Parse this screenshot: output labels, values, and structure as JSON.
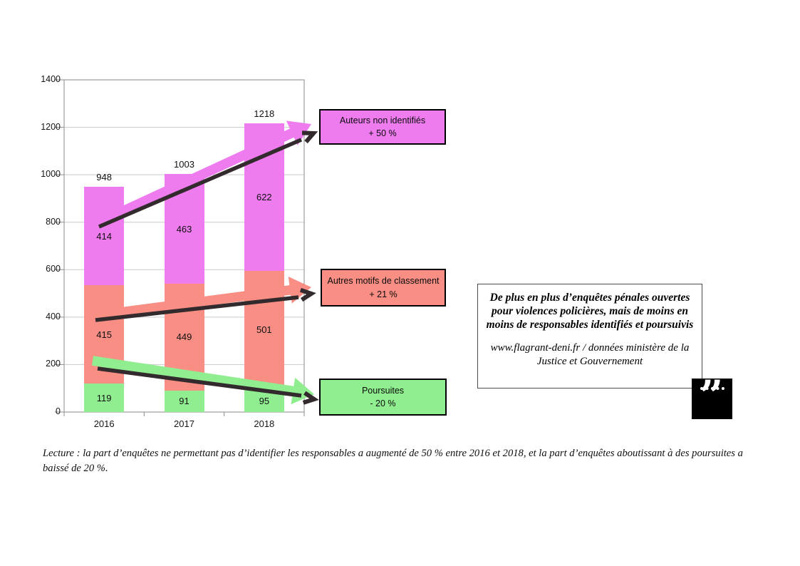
{
  "chart_data": {
    "type": "bar",
    "stacked": true,
    "title": "",
    "xlabel": "",
    "ylabel": "",
    "categories": [
      "2016",
      "2017",
      "2018"
    ],
    "series": [
      {
        "name": "Poursuites",
        "color": "#90ee90",
        "values": [
          119,
          91,
          95
        ]
      },
      {
        "name": "Autres motifs de classement",
        "color": "#f98e85",
        "values": [
          415,
          449,
          501
        ]
      },
      {
        "name": "Auteurs non identifiés",
        "color": "#ee7cee",
        "values": [
          414,
          463,
          622
        ]
      }
    ],
    "totals": [
      948,
      1003,
      1218
    ],
    "ylim": [
      0,
      1400
    ],
    "yticks": [
      0,
      200,
      400,
      600,
      800,
      1000,
      1200,
      1400
    ],
    "grid": true,
    "legend_position": "none",
    "annotations": [
      {
        "label": "Auteurs non identifiés",
        "delta": "+ 50 %",
        "color": "#ee7cee"
      },
      {
        "label": "Autres motifs de classement",
        "delta": "+ 21 %",
        "color": "#f98e85"
      },
      {
        "label": "Poursuites",
        "delta": "- 20 %",
        "color": "#90ee90"
      }
    ],
    "arrow_color": "#322a2c"
  },
  "info_box": {
    "headline": "De plus en plus d’enquêtes pénales ouvertes pour violences policières, mais de moins en moins de responsables identifiés et poursuivis",
    "source": "www.flagrant-deni.fr / données ministère de la Justice et Gouvernement"
  },
  "logo": {
    "symbol": "”"
  },
  "lecture_note": "Lecture : la part d’enquêtes ne permettant pas d’identifier les responsables a augmenté de 50 % entre 2016 et 2018, et la part d’enquêtes aboutissant à des poursuites a baissé de 20 %."
}
